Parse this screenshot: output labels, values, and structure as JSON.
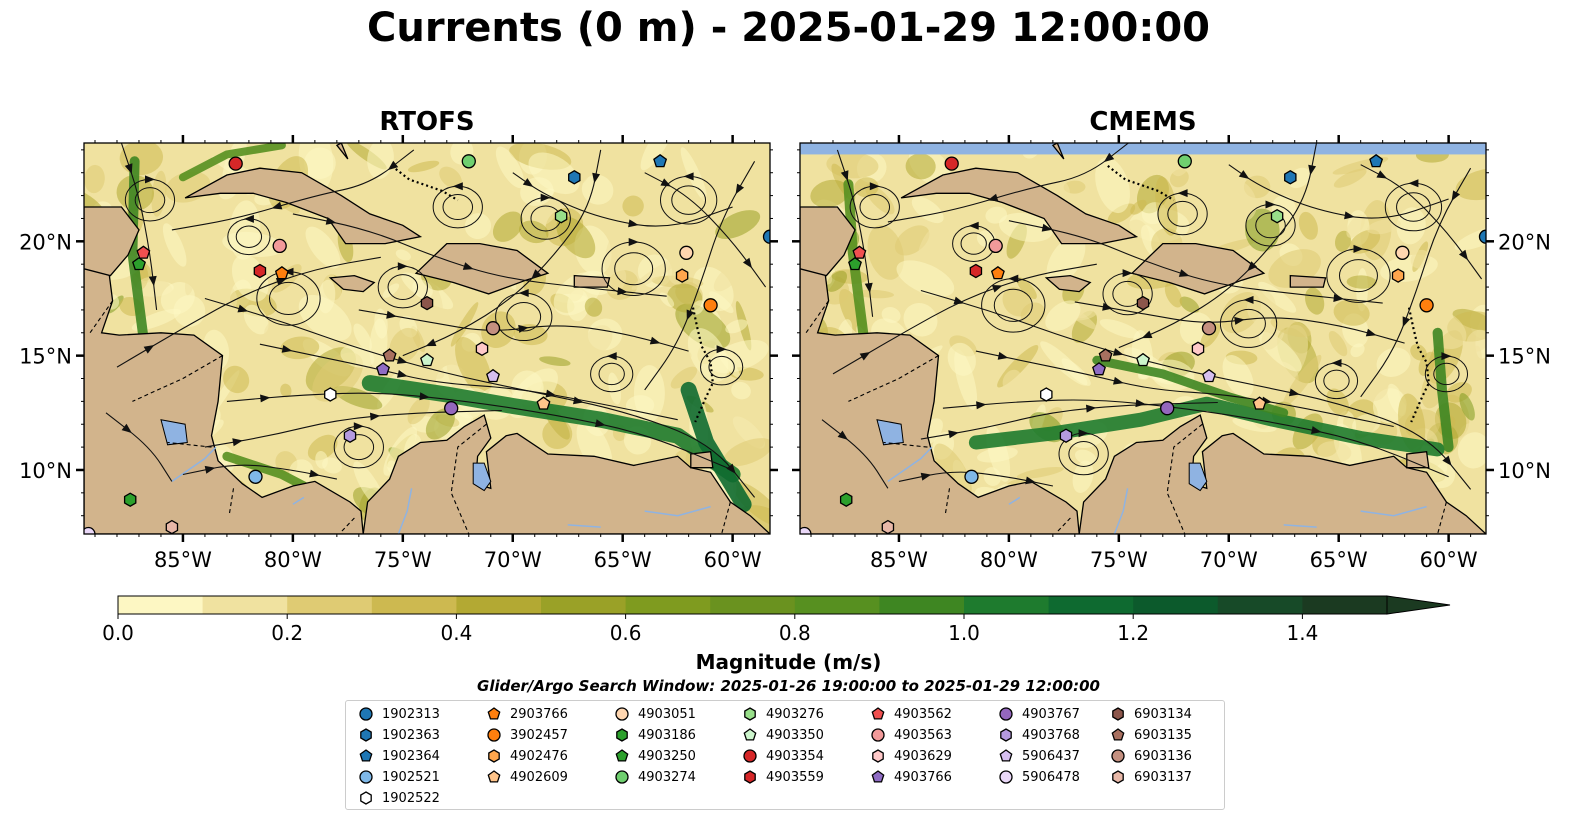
{
  "title": "Currents (0 m) - 2025-01-29 12:00:00",
  "panels": [
    {
      "title": "RTOFS"
    },
    {
      "title": "CMEMS"
    }
  ],
  "axes": {
    "lon_ticks": [
      "85°W",
      "80°W",
      "75°W",
      "70°W",
      "65°W",
      "60°W"
    ],
    "lat_ticks": [
      "20°N",
      "15°N",
      "10°N"
    ],
    "lon_range": [
      -89.5,
      -58.3
    ],
    "lat_range": [
      7.2,
      24.3
    ]
  },
  "colorbar": {
    "label": "Magnitude (m/s)",
    "range": [
      0.0,
      1.5
    ],
    "extend": "max",
    "ticks": [
      "0.0",
      "0.2",
      "0.4",
      "0.6",
      "0.8",
      "1.0",
      "1.2",
      "1.4"
    ],
    "colors": [
      "#fdf7c3",
      "#f0e2a0",
      "#dfcb73",
      "#cdb950",
      "#b3a933",
      "#9aa127",
      "#7f9b1f",
      "#6a921f",
      "#579020",
      "#3e8622",
      "#1e7b2e",
      "#0e6a30",
      "#0c5a2c",
      "#174a28",
      "#1b3a21"
    ]
  },
  "search_window": "Glider/Argo Search Window: 2025-01-26 19:00:00 to 2025-01-29 12:00:00",
  "legend": [
    {
      "id": "1902313",
      "marker": "circle",
      "color": "#1f77b4"
    },
    {
      "id": "1902363",
      "marker": "hexagon",
      "color": "#1f77b4"
    },
    {
      "id": "1902364",
      "marker": "pentagon",
      "color": "#1f77b4"
    },
    {
      "id": "1902521",
      "marker": "circle",
      "color": "#7fb8e8"
    },
    {
      "id": "1902522",
      "marker": "hexagon",
      "color": "#ffffff"
    },
    {
      "id": "2903766",
      "marker": "pentagon",
      "color": "#ff7f0e"
    },
    {
      "id": "3902457",
      "marker": "circle",
      "color": "#ff7f0e"
    },
    {
      "id": "4902476",
      "marker": "hexagon",
      "color": "#ffa64d"
    },
    {
      "id": "4902609",
      "marker": "pentagon",
      "color": "#ffc48a"
    },
    {
      "id": "4903051",
      "marker": "circle",
      "color": "#ffd6b0"
    },
    {
      "id": "4903186",
      "marker": "hexagon",
      "color": "#2ca02c"
    },
    {
      "id": "4903250",
      "marker": "pentagon",
      "color": "#2ca02c"
    },
    {
      "id": "4903274",
      "marker": "circle",
      "color": "#6fcf6f"
    },
    {
      "id": "4903276",
      "marker": "hexagon",
      "color": "#98df8a"
    },
    {
      "id": "4903350",
      "marker": "pentagon",
      "color": "#ccf5cc"
    },
    {
      "id": "4903354",
      "marker": "circle",
      "color": "#d62728"
    },
    {
      "id": "4903559",
      "marker": "hexagon",
      "color": "#d62728"
    },
    {
      "id": "4903562",
      "marker": "pentagon",
      "color": "#f05050"
    },
    {
      "id": "4903563",
      "marker": "circle",
      "color": "#f29a9a"
    },
    {
      "id": "4903629",
      "marker": "hexagon",
      "color": "#ffc9c9"
    },
    {
      "id": "4903766",
      "marker": "pentagon",
      "color": "#8f6cc4"
    },
    {
      "id": "4903767",
      "marker": "circle",
      "color": "#9467bd"
    },
    {
      "id": "4903768",
      "marker": "hexagon",
      "color": "#b59ae0"
    },
    {
      "id": "5906437",
      "marker": "pentagon",
      "color": "#d6bff0"
    },
    {
      "id": "5906478",
      "marker": "circle",
      "color": "#ead8f8"
    },
    {
      "id": "6903134",
      "marker": "hexagon",
      "color": "#8c564b"
    },
    {
      "id": "6903135",
      "marker": "pentagon",
      "color": "#a97060"
    },
    {
      "id": "6903136",
      "marker": "circle",
      "color": "#c49080"
    },
    {
      "id": "6903137",
      "marker": "hexagon",
      "color": "#e8b8a8"
    }
  ],
  "floats": [
    {
      "id": "1902313",
      "lon": -58.3,
      "lat": 20.2
    },
    {
      "id": "1902363",
      "lon": -67.2,
      "lat": 22.8
    },
    {
      "id": "1902364",
      "lon": -63.3,
      "lat": 23.5
    },
    {
      "id": "1902521",
      "lon": -81.7,
      "lat": 9.7
    },
    {
      "id": "1902522",
      "lon": -78.3,
      "lat": 13.3
    },
    {
      "id": "2903766",
      "lon": -80.5,
      "lat": 18.6
    },
    {
      "id": "3902457",
      "lon": -61.0,
      "lat": 17.2
    },
    {
      "id": "4902476",
      "lon": -62.3,
      "lat": 18.5
    },
    {
      "id": "4902609",
      "lon": -68.6,
      "lat": 12.9
    },
    {
      "id": "4903051",
      "lon": -62.1,
      "lat": 19.5
    },
    {
      "id": "4903186",
      "lon": -87.4,
      "lat": 8.7
    },
    {
      "id": "4903250",
      "lon": -87.0,
      "lat": 19.0
    },
    {
      "id": "4903274",
      "lon": -72.0,
      "lat": 23.5
    },
    {
      "id": "4903276",
      "lon": -67.8,
      "lat": 21.1
    },
    {
      "id": "4903350",
      "lon": -73.9,
      "lat": 14.8
    },
    {
      "id": "4903354",
      "lon": -82.6,
      "lat": 23.4
    },
    {
      "id": "4903559",
      "lon": -81.5,
      "lat": 18.7
    },
    {
      "id": "4903562",
      "lon": -86.8,
      "lat": 19.5
    },
    {
      "id": "4903563",
      "lon": -80.6,
      "lat": 19.8
    },
    {
      "id": "4903629",
      "lon": -71.4,
      "lat": 15.3
    },
    {
      "id": "4903766",
      "lon": -75.9,
      "lat": 14.4
    },
    {
      "id": "4903767",
      "lon": -72.8,
      "lat": 12.7
    },
    {
      "id": "4903768",
      "lon": -77.4,
      "lat": 11.5
    },
    {
      "id": "5906437",
      "lon": -70.9,
      "lat": 14.1
    },
    {
      "id": "5906478",
      "lon": -89.3,
      "lat": 7.2
    },
    {
      "id": "6903134",
      "lon": -73.9,
      "lat": 17.3
    },
    {
      "id": "6903135",
      "lon": -75.6,
      "lat": 15.0
    },
    {
      "id": "6903136",
      "lon": -70.9,
      "lat": 16.2
    },
    {
      "id": "6903137",
      "lon": -85.5,
      "lat": 7.5
    }
  ]
}
